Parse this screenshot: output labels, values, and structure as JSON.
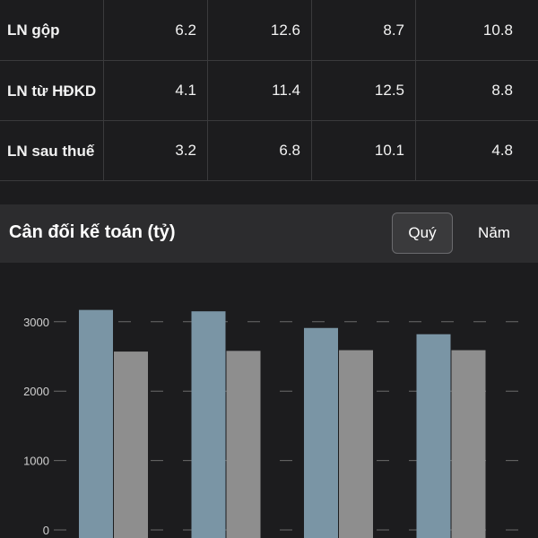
{
  "table": {
    "rows": [
      {
        "label": "LN gộp",
        "values": [
          "6.2",
          "12.6",
          "8.7",
          "10.8"
        ]
      },
      {
        "label": "LN từ HĐKD",
        "values": [
          "4.1",
          "11.4",
          "12.5",
          "8.8"
        ]
      },
      {
        "label": "LN sau thuế",
        "values": [
          "3.2",
          "6.8",
          "10.1",
          "4.8"
        ]
      }
    ]
  },
  "balance_section": {
    "title": "Cân đối kế toán (tỷ)",
    "tabs": {
      "quarter": "Quý",
      "year": "Năm"
    },
    "selected_tab": "quarter"
  },
  "chart_data": {
    "type": "bar",
    "categories": [
      "",
      "",
      "",
      ""
    ],
    "series": [
      {
        "values": [
          3170,
          3150,
          2910,
          2820
        ],
        "color": "#7a95a5"
      },
      {
        "values": [
          2570,
          2580,
          2590,
          2590
        ],
        "color": "#8e8e8e"
      }
    ],
    "yticks": [
      "0",
      "1000",
      "2000",
      "3000"
    ],
    "ylim": [
      0,
      3000
    ],
    "grid": true
  }
}
